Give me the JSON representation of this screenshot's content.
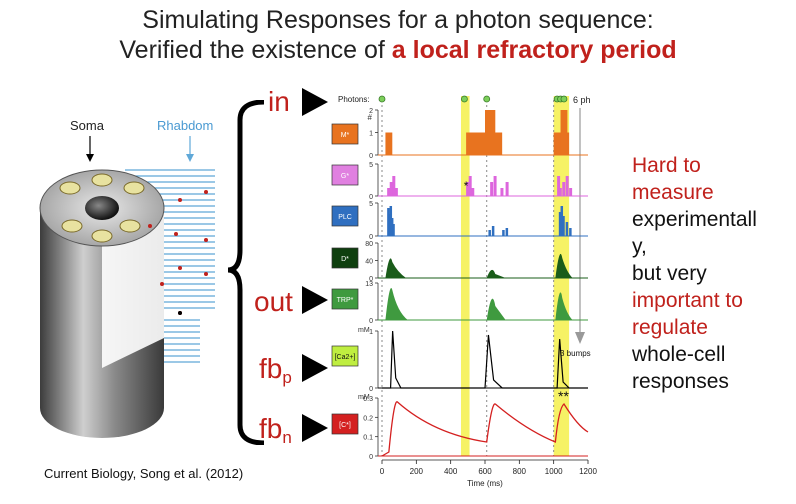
{
  "title": {
    "line1": "Simulating Responses for a photon sequence:",
    "line2_prefix": "Verified the existence of ",
    "line2_highlight": "a local refractory period"
  },
  "cell_diagram": {
    "soma_label": "Soma",
    "rhabdom_label": "Rhabdom"
  },
  "side_labels": {
    "in": "in",
    "out": "out",
    "fb_p_main": "fb",
    "fb_p_sub": "p",
    "fb_n_main": "fb",
    "fb_n_sub": "n"
  },
  "panel": {
    "photons_label": "Photons:",
    "photon_count": "6 ph",
    "bumps_label": "3 bumps",
    "star_single": "*",
    "star_double": "**",
    "xlabel": "Time (ms)",
    "units": {
      "mstar": "#",
      "ca": "mM",
      "c": "mM"
    },
    "badges": {
      "mstar": "M*",
      "gstar": "G*",
      "plc": "PLC",
      "dstar": "D*",
      "trp": "TRP*",
      "ca": "[Ca2+]",
      "c": "[C*]"
    }
  },
  "right_text": {
    "l1": "Hard to",
    "l2": "measure",
    "l3": "experimentall",
    "l4": "y,",
    "l5": "but very",
    "l6": "important to",
    "l7": "regulate",
    "l8": "whole-cell",
    "l9": "responses"
  },
  "citation": "Current Biology, Song et al. (2012)",
  "chart_data": {
    "type": "line",
    "xlabel": "Time (ms)",
    "xlim": [
      0,
      1200
    ],
    "xticks": [
      0,
      200,
      400,
      600,
      800,
      1000,
      1200
    ],
    "photon_times_ms": [
      0,
      480,
      610,
      1020,
      1040,
      1060
    ],
    "highlight_windows_ms": [
      [
        460,
        510
      ],
      [
        1000,
        1090
      ]
    ],
    "series": [
      {
        "name": "M*",
        "yticks": [
          0,
          1,
          2
        ],
        "color": "#e8731f"
      },
      {
        "name": "G*",
        "yticks": [
          0,
          5
        ],
        "color": "#dd66dd"
      },
      {
        "name": "PLC",
        "yticks": [
          0,
          5
        ],
        "color": "#2f6fc0"
      },
      {
        "name": "D*",
        "yticks": [
          0,
          40,
          80
        ],
        "color": "#1a5c1a"
      },
      {
        "name": "TRP*",
        "yticks": [
          0,
          13
        ],
        "color": "#3f9a3f"
      },
      {
        "name": "[Ca2+]",
        "yticks": [
          0,
          1
        ],
        "color": "#000000"
      },
      {
        "name": "[C*]",
        "yticks": [
          0,
          0.1,
          0.2,
          0.3
        ],
        "color": "#d42020"
      }
    ],
    "colors": {
      "highlight": "#f5f04a",
      "photon_marker": "#7ccf5a"
    }
  }
}
